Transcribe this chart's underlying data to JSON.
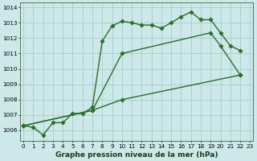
{
  "xlabel": "Graphe pression niveau de la mer (hPa)",
  "line1_x": [
    0,
    1,
    2,
    3,
    4,
    5,
    6,
    7,
    8,
    9,
    10,
    11,
    12,
    13,
    14,
    15,
    16,
    17,
    18,
    19,
    20,
    21,
    22
  ],
  "line1_y": [
    1006.3,
    1006.2,
    1005.7,
    1006.5,
    1006.5,
    1007.1,
    1007.1,
    1007.5,
    1011.8,
    1012.8,
    1013.1,
    1013.0,
    1012.85,
    1012.85,
    1012.65,
    1013.0,
    1013.4,
    1013.7,
    1013.2,
    1013.2,
    1012.35,
    1011.5,
    1011.2
  ],
  "line2_x": [
    0,
    7,
    10,
    19,
    20,
    22
  ],
  "line2_y": [
    1006.3,
    1007.3,
    1011.0,
    1012.35,
    1011.5,
    1009.6
  ],
  "line3_x": [
    0,
    7,
    10,
    22
  ],
  "line3_y": [
    1006.3,
    1007.3,
    1008.0,
    1009.6
  ],
  "ylim": [
    1005.3,
    1014.3
  ],
  "yticks": [
    1006,
    1007,
    1008,
    1009,
    1010,
    1011,
    1012,
    1013,
    1014
  ],
  "xlim": [
    -0.3,
    23.3
  ],
  "bg_color": "#cce8e8",
  "grid_color": "#aacccc",
  "line_color": "#2a6e2a",
  "markersize": 2.8,
  "linewidth": 1.0,
  "xlabel_fontsize": 6.5,
  "tick_fontsize": 5.2
}
